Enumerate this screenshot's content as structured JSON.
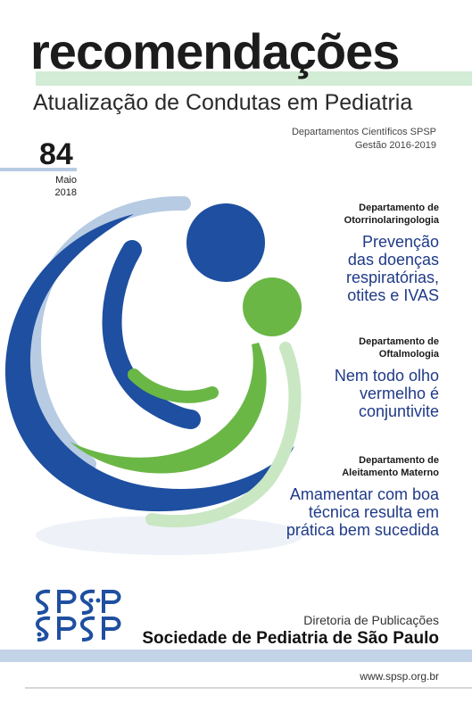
{
  "header": {
    "title": "recomendações",
    "subtitle": "Atualização de Condutas em Pediatria",
    "departments_line1": "Departamentos Científicos SPSP",
    "departments_line2": "Gestão 2016-2019"
  },
  "issue": {
    "number": "84",
    "month": "Maio",
    "year": "2018"
  },
  "topics": [
    {
      "department_line1": "Departamento de",
      "department_line2": "Otorrinolaringologia",
      "headline_lines": [
        "Prevenção",
        "das doenças",
        "respiratórias,",
        "otites e IVAS"
      ]
    },
    {
      "department_line1": "Departamento de",
      "department_line2": "Oftalmologia",
      "headline_lines": [
        "Nem todo olho",
        "vermelho é",
        "conjuntivite"
      ]
    },
    {
      "department_line1": "Departamento de",
      "department_line2": "Aleitamento Materno",
      "headline_lines": [
        "Amamentar com boa",
        "técnica resulta em",
        "prática bem sucedida"
      ]
    }
  ],
  "footer": {
    "directorate": "Diretoria de Publicações",
    "society": "Sociedade de Pediatria de São Paulo",
    "website": "www.spsp.org.br"
  },
  "brand_colors": {
    "dark_blue": "#1e4fa0",
    "light_blue": "#b7cbe3",
    "green": "#6ab746",
    "light_green": "#c9e7c3"
  },
  "logos": {
    "spsp_text": "SPSP"
  }
}
